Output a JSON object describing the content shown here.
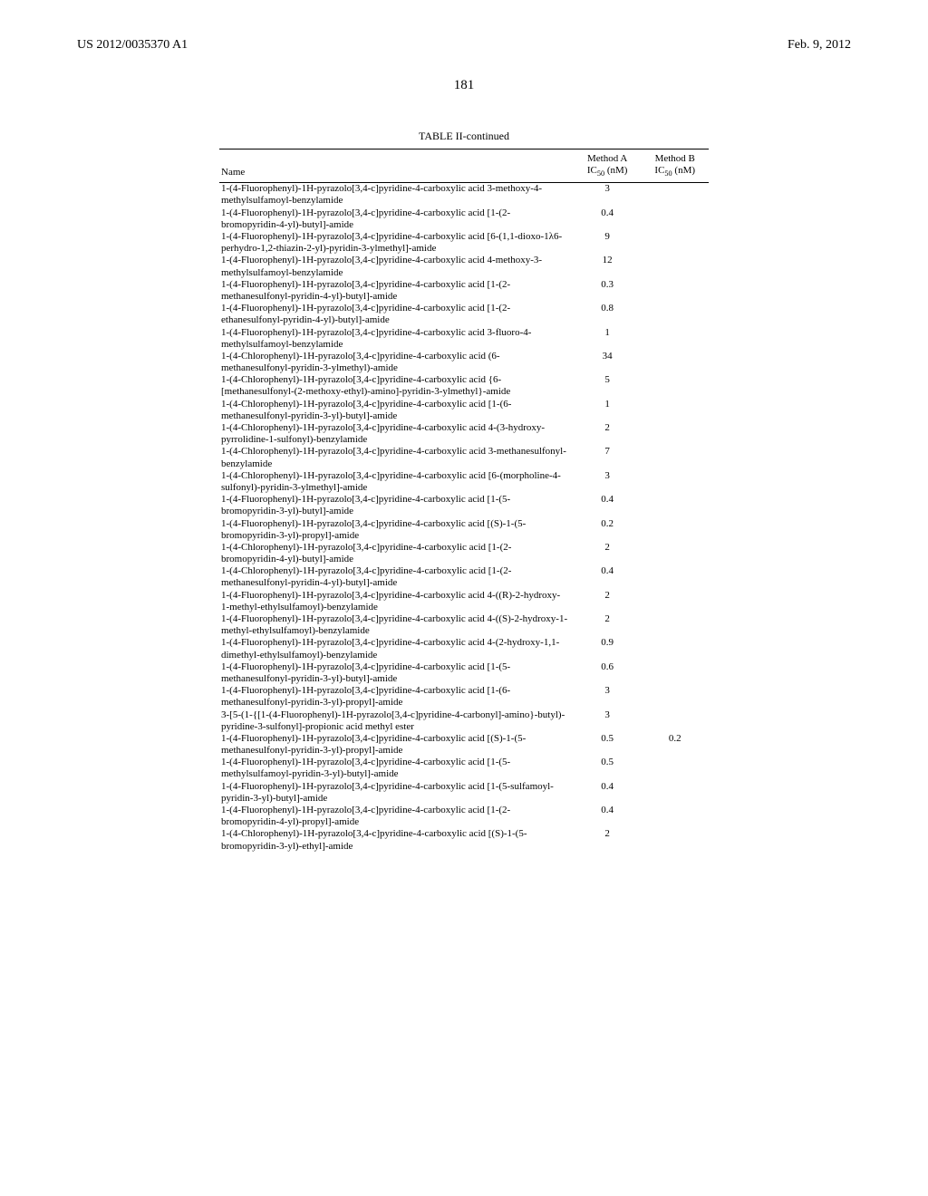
{
  "header": {
    "pub_number": "US 2012/0035370 A1",
    "pub_date": "Feb. 9, 2012",
    "page_number": "181"
  },
  "table": {
    "caption": "TABLE II-continued",
    "columns": {
      "name": "Name",
      "method_a_line1": "Method A",
      "method_a_line2": "IC",
      "method_a_sub": "50",
      "method_a_unit": " (nM)",
      "method_b_line1": "Method B",
      "method_b_line2": "IC",
      "method_b_sub": "50",
      "method_b_unit": " (nM)"
    },
    "rows": [
      {
        "name": "1-(4-Fluorophenyl)-1H-pyrazolo[3,4-c]pyridine-4-carboxylic acid 3-methoxy-4-methylsulfamoyl-benzylamide",
        "a": "3",
        "b": ""
      },
      {
        "name": "1-(4-Fluorophenyl)-1H-pyrazolo[3,4-c]pyridine-4-carboxylic acid [1-(2-bromopyridin-4-yl)-butyl]-amide",
        "a": "0.4",
        "b": ""
      },
      {
        "name": "1-(4-Fluorophenyl)-1H-pyrazolo[3,4-c]pyridine-4-carboxylic acid [6-(1,1-dioxo-1λ6-perhydro-1,2-thiazin-2-yl)-pyridin-3-ylmethyl]-amide",
        "a": "9",
        "b": ""
      },
      {
        "name": "1-(4-Fluorophenyl)-1H-pyrazolo[3,4-c]pyridine-4-carboxylic acid 4-methoxy-3-methylsulfamoyl-benzylamide",
        "a": "12",
        "b": ""
      },
      {
        "name": "1-(4-Fluorophenyl)-1H-pyrazolo[3,4-c]pyridine-4-carboxylic acid [1-(2-methanesulfonyl-pyridin-4-yl)-butyl]-amide",
        "a": "0.3",
        "b": ""
      },
      {
        "name": "1-(4-Fluorophenyl)-1H-pyrazolo[3,4-c]pyridine-4-carboxylic acid [1-(2-ethanesulfonyl-pyridin-4-yl)-butyl]-amide",
        "a": "0.8",
        "b": ""
      },
      {
        "name": "1-(4-Fluorophenyl)-1H-pyrazolo[3,4-c]pyridine-4-carboxylic acid 3-fluoro-4-methylsulfamoyl-benzylamide",
        "a": "1",
        "b": ""
      },
      {
        "name": "1-(4-Chlorophenyl)-1H-pyrazolo[3,4-c]pyridine-4-carboxylic acid (6-methanesulfonyl-pyridin-3-ylmethyl)-amide",
        "a": "34",
        "b": ""
      },
      {
        "name": "1-(4-Chlorophenyl)-1H-pyrazolo[3,4-c]pyridine-4-carboxylic acid {6-[methanesulfonyl-(2-methoxy-ethyl)-amino]-pyridin-3-ylmethyl}-amide",
        "a": "5",
        "b": ""
      },
      {
        "name": "1-(4-Chlorophenyl)-1H-pyrazolo[3,4-c]pyridine-4-carboxylic acid [1-(6-methanesulfonyl-pyridin-3-yl)-butyl]-amide",
        "a": "1",
        "b": ""
      },
      {
        "name": "1-(4-Chlorophenyl)-1H-pyrazolo[3,4-c]pyridine-4-carboxylic acid 4-(3-hydroxy-pyrrolidine-1-sulfonyl)-benzylamide",
        "a": "2",
        "b": ""
      },
      {
        "name": "1-(4-Chlorophenyl)-1H-pyrazolo[3,4-c]pyridine-4-carboxylic acid 3-methanesulfonyl-benzylamide",
        "a": "7",
        "b": ""
      },
      {
        "name": "1-(4-Chlorophenyl)-1H-pyrazolo[3,4-c]pyridine-4-carboxylic acid [6-(morpholine-4-sulfonyl)-pyridin-3-ylmethyl]-amide",
        "a": "3",
        "b": ""
      },
      {
        "name": "1-(4-Fluorophenyl)-1H-pyrazolo[3,4-c]pyridine-4-carboxylic acid [1-(5-bromopyridin-3-yl)-butyl]-amide",
        "a": "0.4",
        "b": ""
      },
      {
        "name": "1-(4-Fluorophenyl)-1H-pyrazolo[3,4-c]pyridine-4-carboxylic acid [(S)-1-(5-bromopyridin-3-yl)-propyl]-amide",
        "a": "0.2",
        "b": ""
      },
      {
        "name": "1-(4-Chlorophenyl)-1H-pyrazolo[3,4-c]pyridine-4-carboxylic acid [1-(2-bromopyridin-4-yl)-butyl]-amide",
        "a": "2",
        "b": ""
      },
      {
        "name": "1-(4-Chlorophenyl)-1H-pyrazolo[3,4-c]pyridine-4-carboxylic acid [1-(2-methanesulfonyl-pyridin-4-yl)-butyl]-amide",
        "a": "0.4",
        "b": ""
      },
      {
        "name": "1-(4-Fluorophenyl)-1H-pyrazolo[3,4-c]pyridine-4-carboxylic acid 4-((R)-2-hydroxy-1-methyl-ethylsulfamoyl)-benzylamide",
        "a": "2",
        "b": ""
      },
      {
        "name": "1-(4-Fluorophenyl)-1H-pyrazolo[3,4-c]pyridine-4-carboxylic acid 4-((S)-2-hydroxy-1-methyl-ethylsulfamoyl)-benzylamide",
        "a": "2",
        "b": ""
      },
      {
        "name": "1-(4-Fluorophenyl)-1H-pyrazolo[3,4-c]pyridine-4-carboxylic acid 4-(2-hydroxy-1,1-dimethyl-ethylsulfamoyl)-benzylamide",
        "a": "0.9",
        "b": ""
      },
      {
        "name": "1-(4-Fluorophenyl)-1H-pyrazolo[3,4-c]pyridine-4-carboxylic acid [1-(5-methanesulfonyl-pyridin-3-yl)-butyl]-amide",
        "a": "0.6",
        "b": ""
      },
      {
        "name": "1-(4-Fluorophenyl)-1H-pyrazolo[3,4-c]pyridine-4-carboxylic acid [1-(6-methanesulfonyl-pyridin-3-yl)-propyl]-amide",
        "a": "3",
        "b": ""
      },
      {
        "name": "3-[5-(1-{[1-(4-Fluorophenyl)-1H-pyrazolo[3,4-c]pyridine-4-carbonyl]-amino}-butyl)-pyridine-3-sulfonyl]-propionic acid methyl ester",
        "a": "3",
        "b": ""
      },
      {
        "name": "1-(4-Fluorophenyl)-1H-pyrazolo[3,4-c]pyridine-4-carboxylic acid [(S)-1-(5-methanesulfonyl-pyridin-3-yl)-propyl]-amide",
        "a": "0.5",
        "b": "0.2"
      },
      {
        "name": "1-(4-Fluorophenyl)-1H-pyrazolo[3,4-c]pyridine-4-carboxylic acid [1-(5-methylsulfamoyl-pyridin-3-yl)-butyl]-amide",
        "a": "0.5",
        "b": ""
      },
      {
        "name": "1-(4-Fluorophenyl)-1H-pyrazolo[3,4-c]pyridine-4-carboxylic acid [1-(5-sulfamoyl-pyridin-3-yl)-butyl]-amide",
        "a": "0.4",
        "b": ""
      },
      {
        "name": "1-(4-Fluorophenyl)-1H-pyrazolo[3,4-c]pyridine-4-carboxylic acid [1-(2-bromopyridin-4-yl)-propyl]-amide",
        "a": "0.4",
        "b": ""
      },
      {
        "name": "1-(4-Chlorophenyl)-1H-pyrazolo[3,4-c]pyridine-4-carboxylic acid [(S)-1-(5-bromopyridin-3-yl)-ethyl]-amide",
        "a": "2",
        "b": ""
      }
    ]
  }
}
